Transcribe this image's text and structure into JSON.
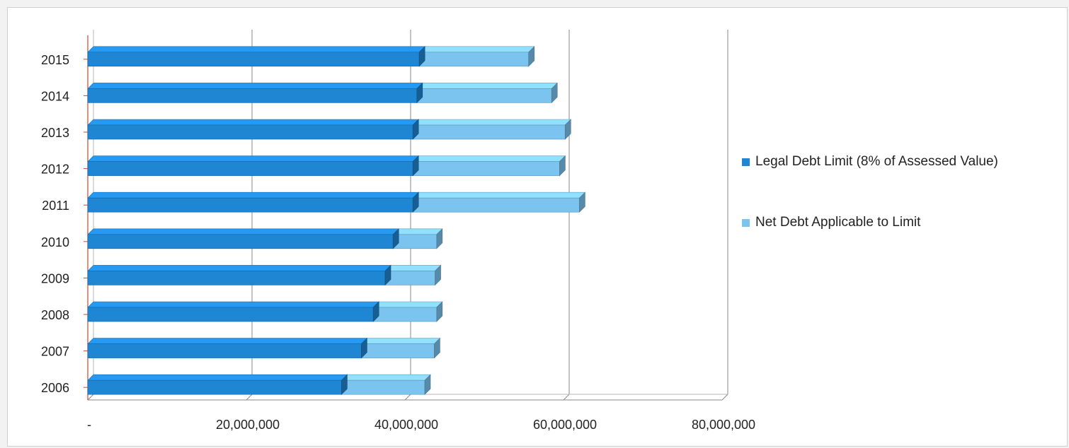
{
  "chart_data": {
    "type": "bar",
    "orientation": "horizontal",
    "stacked": true,
    "categories": [
      "2006",
      "2007",
      "2008",
      "2009",
      "2010",
      "2011",
      "2012",
      "2013",
      "2014",
      "2015"
    ],
    "series": [
      {
        "name": "Legal Debt Limit (8% of Assessed Value)",
        "color": "#1f86d4",
        "values": [
          32000000,
          34500000,
          36000000,
          37500000,
          38500000,
          41000000,
          41000000,
          41000000,
          41500000,
          41800000
        ]
      },
      {
        "name": "Net Debt Applicable to Limit",
        "color": "#7cc4f0",
        "values": [
          10500000,
          9200000,
          8000000,
          6300000,
          5500000,
          21000000,
          18500000,
          19200000,
          17000000,
          13800000
        ]
      }
    ],
    "x_tick_labels": [
      "-",
      "20,000,000",
      "40,000,000",
      "60,000,000",
      "80,000,000"
    ],
    "xlim": [
      0,
      80000000
    ],
    "grid": true,
    "legend_position": "right"
  }
}
